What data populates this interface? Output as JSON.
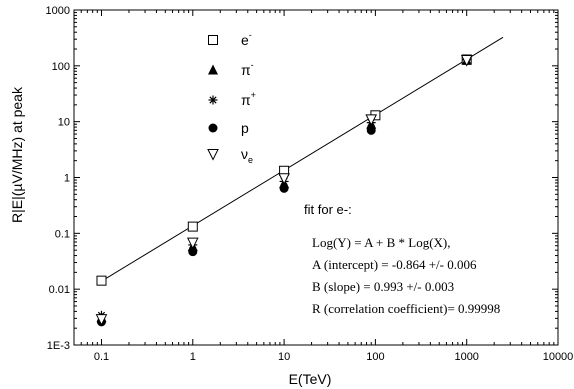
{
  "chart_data": {
    "type": "scatter",
    "xlabel": "E(TeV)",
    "ylabel": "R|E|(µV/MHz) at peak",
    "x_scale": "log",
    "y_scale": "log",
    "xlim": [
      0.05,
      10000
    ],
    "ylim": [
      0.001,
      1000
    ],
    "x_ticks": [
      0.1,
      1,
      10,
      100,
      1000,
      10000
    ],
    "x_tick_labels": [
      "0.1",
      "1",
      "10",
      "100",
      "1000",
      "10000"
    ],
    "y_ticks": [
      0.001,
      0.01,
      0.1,
      1,
      10,
      100,
      1000
    ],
    "y_tick_labels": [
      "1E-3",
      "0.01",
      "0.1",
      "1",
      "10",
      "100",
      "1000"
    ],
    "grid": false,
    "legend_position": "top-center",
    "series": [
      {
        "name": "e",
        "symbol": "-",
        "marker": "open-square",
        "x": [
          0.1,
          1,
          10,
          100,
          1000
        ],
        "y": [
          0.0142,
          0.132,
          1.32,
          13.0,
          130
        ]
      },
      {
        "name": "π",
        "symbol": "-",
        "marker": "filled-triangle",
        "x": [
          0.1,
          1,
          10,
          90,
          1000
        ],
        "y": [
          0.0031,
          0.058,
          0.78,
          9.0,
          125
        ]
      },
      {
        "name": "π",
        "symbol": "+",
        "marker": "asterisk",
        "x": [
          0.1,
          1,
          10,
          90,
          1000
        ],
        "y": [
          0.0034,
          0.062,
          0.85,
          9.6,
          128
        ]
      },
      {
        "name": "p",
        "symbol": "",
        "marker": "filled-circle",
        "x": [
          0.1,
          1,
          10,
          90
        ],
        "y": [
          0.0026,
          0.047,
          0.64,
          7.0
        ]
      },
      {
        "name": "ν",
        "symbol": "e",
        "marker": "open-down-triangle",
        "x": [
          0.1,
          1,
          10,
          90,
          1000
        ],
        "y": [
          0.0029,
          0.068,
          0.97,
          11.0,
          127
        ]
      }
    ],
    "fit_line": {
      "intercept": -0.864,
      "slope": 0.993,
      "x_range": [
        0.1,
        2500
      ]
    },
    "annotation": {
      "title": "fit for e-:",
      "lines": [
        "Log(Y) = A + B * Log(X),",
        "A (intercept) = -0.864 +/- 0.006",
        "B (slope) = 0.993 +/- 0.003",
        "R (correlation coefficient)= 0.99998"
      ]
    }
  }
}
